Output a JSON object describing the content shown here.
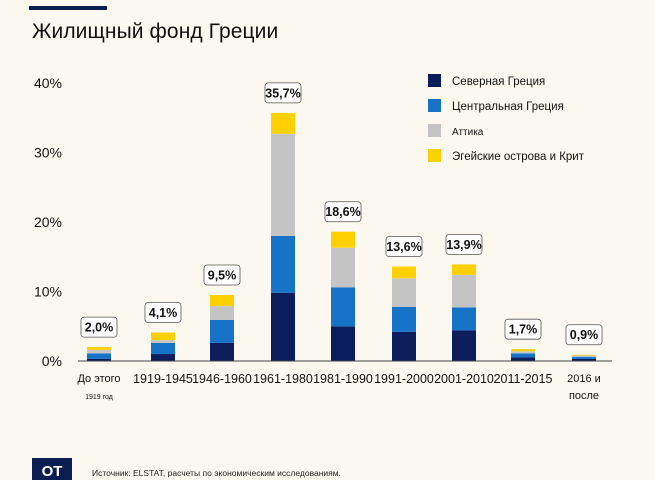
{
  "title": "Жилищный фонд Греции",
  "source": "Источник: ELSTAT, расчеты по экономическим исследованиям.",
  "logo": "OT",
  "chart_data": {
    "type": "bar",
    "stacked": true,
    "title": "Жилищный фонд Греции",
    "xlabel": "",
    "ylabel": "",
    "ylim": [
      0,
      40
    ],
    "yticks": [
      "0%",
      "10%",
      "20%",
      "30%",
      "40%"
    ],
    "grid": false,
    "legend_position": "top-right",
    "categories": [
      [
        "До этого",
        "1919 год"
      ],
      [
        "1919-1945"
      ],
      [
        "1946-1960"
      ],
      [
        "1961-1980"
      ],
      [
        "1981-1990"
      ],
      [
        "1991-2000"
      ],
      [
        "2001-2010"
      ],
      [
        "2011-2015"
      ],
      [
        "2016 и",
        "после"
      ]
    ],
    "totals": [
      "2,0%",
      "4,1%",
      "9,5%",
      "35,7%",
      "18,6%",
      "13,6%",
      "13,9%",
      "1,7%",
      "0,9%"
    ],
    "series": [
      {
        "name": "Северная Греция",
        "color": "#0c1d5c",
        "values": [
          0.3,
          1.0,
          2.6,
          9.8,
          5.0,
          4.2,
          4.4,
          0.5,
          0.3
        ]
      },
      {
        "name": "Центральная Греция",
        "color": "#1673c8",
        "values": [
          0.8,
          1.6,
          3.3,
          8.2,
          5.6,
          3.6,
          3.3,
          0.6,
          0.3
        ]
      },
      {
        "name": "Аттика",
        "color": "#c4c4c4",
        "values": [
          0.5,
          0.4,
          2.0,
          14.7,
          5.7,
          4.1,
          4.7,
          0.3,
          0.2
        ]
      },
      {
        "name": "Эгейские острова и Крит",
        "color": "#ffd000",
        "values": [
          0.4,
          1.1,
          1.6,
          3.0,
          2.3,
          1.7,
          1.5,
          0.3,
          0.1
        ]
      }
    ]
  }
}
